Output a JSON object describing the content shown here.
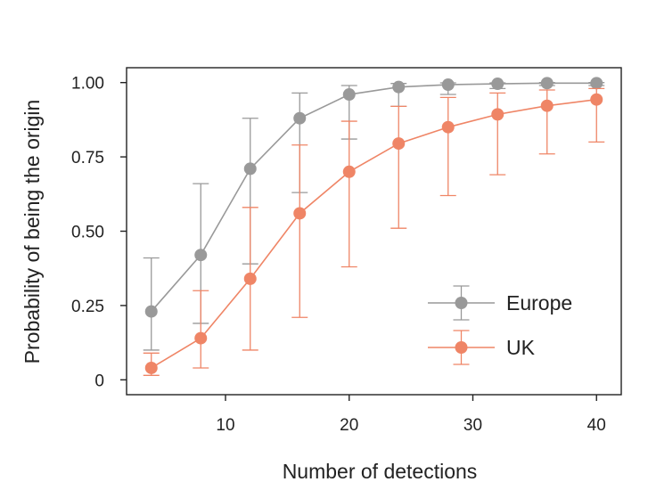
{
  "chart_data": {
    "type": "line",
    "xlabel": "Number of detections",
    "ylabel": "Probability of being the origin",
    "xlim": [
      2,
      42
    ],
    "ylim": [
      -0.05,
      1.05
    ],
    "x_ticks": [
      10,
      20,
      30,
      40
    ],
    "x_tick_labels": [
      "10",
      "20",
      "30",
      "40"
    ],
    "y_ticks": [
      0,
      0.25,
      0.5,
      0.75,
      1.0
    ],
    "y_tick_labels": [
      "0",
      "0.25",
      "0.50",
      "0.75",
      "1.00"
    ],
    "grid": false,
    "legend_position": "bottom-right",
    "x": [
      4,
      8,
      12,
      16,
      20,
      24,
      28,
      32,
      36,
      40
    ],
    "series": [
      {
        "name": "Europe",
        "color": "#999999",
        "values": [
          0.23,
          0.42,
          0.71,
          0.88,
          0.96,
          0.985,
          0.993,
          0.996,
          0.998,
          0.998
        ],
        "lower": [
          0.1,
          0.19,
          0.39,
          0.63,
          0.81,
          0.92,
          0.96,
          0.98,
          0.99,
          0.99
        ],
        "upper": [
          0.41,
          0.66,
          0.88,
          0.965,
          0.99,
          0.997,
          0.999,
          0.999,
          1.0,
          1.0
        ]
      },
      {
        "name": "UK",
        "color": "#ef8566",
        "values": [
          0.04,
          0.14,
          0.34,
          0.56,
          0.7,
          0.795,
          0.85,
          0.893,
          0.922,
          0.943
        ],
        "lower": [
          0.015,
          0.04,
          0.1,
          0.21,
          0.38,
          0.51,
          0.62,
          0.69,
          0.76,
          0.8
        ],
        "upper": [
          0.09,
          0.3,
          0.58,
          0.79,
          0.87,
          0.92,
          0.95,
          0.965,
          0.975,
          0.98
        ]
      }
    ]
  }
}
